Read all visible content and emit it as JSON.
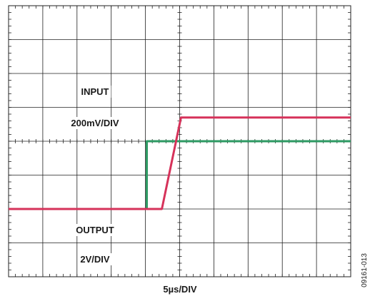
{
  "figure_id": "09161-013",
  "chart_data": {
    "type": "line",
    "grid": true,
    "grid_divisions": {
      "horizontal": 10,
      "vertical": 8
    },
    "xlabel": "5µs/DIV",
    "time_per_div_us": 5,
    "time_range_us": [
      0,
      50
    ],
    "series": [
      {
        "name": "INPUT",
        "scale_label": "200mV/DIV",
        "color": "#2e9a63",
        "unit": "mV",
        "volts_per_div_mv": 200,
        "y_range_mv": [
          -200,
          600
        ],
        "x_us": [
          0,
          20.2,
          20.2,
          50
        ],
        "y_mv": [
          0,
          0,
          200,
          200
        ]
      },
      {
        "name": "OUTPUT",
        "scale_label": "2V/DIV",
        "color": "#d6325a",
        "unit": "V",
        "volts_per_div_v": 2,
        "y_range_v": [
          -2,
          6
        ],
        "x_us": [
          0,
          22.4,
          25.2,
          50
        ],
        "y_v": [
          0,
          0,
          2.7,
          2.7
        ]
      }
    ]
  }
}
